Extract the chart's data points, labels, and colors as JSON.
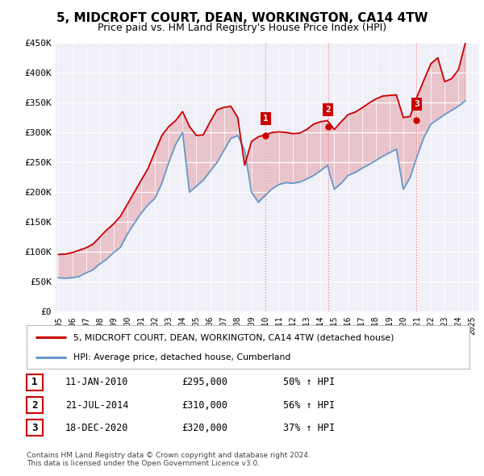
{
  "title": "5, MIDCROFT COURT, DEAN, WORKINGTON, CA14 4TW",
  "subtitle": "Price paid vs. HM Land Registry's House Price Index (HPI)",
  "ylim": [
    0,
    450000
  ],
  "yticks": [
    0,
    50000,
    100000,
    150000,
    200000,
    250000,
    300000,
    350000,
    400000,
    450000
  ],
  "ytick_labels": [
    "£0",
    "£50K",
    "£100K",
    "£150K",
    "£200K",
    "£250K",
    "£300K",
    "£350K",
    "£400K",
    "£450K"
  ],
  "xtick_labels": [
    "1995",
    "1996",
    "1997",
    "1998",
    "1999",
    "2000",
    "2001",
    "2002",
    "2003",
    "2004",
    "2005",
    "2006",
    "2007",
    "2008",
    "2009",
    "2010",
    "2011",
    "2012",
    "2013",
    "2014",
    "2015",
    "2016",
    "2017",
    "2018",
    "2019",
    "2020",
    "2021",
    "2022",
    "2023",
    "2024",
    "2025"
  ],
  "hpi_color": "#6699cc",
  "price_color": "#cc0000",
  "vline_color": "#ff6666",
  "bg_color": "#ffffff",
  "plot_bg": "#f0f0f8",
  "legend_label_price": "5, MIDCROFT COURT, DEAN, WORKINGTON, CA14 4TW (detached house)",
  "legend_label_hpi": "HPI: Average price, detached house, Cumberland",
  "sales": [
    {
      "date": 2010.03,
      "price": 295000,
      "label": "1"
    },
    {
      "date": 2014.55,
      "price": 310000,
      "label": "2"
    },
    {
      "date": 2020.96,
      "price": 320000,
      "label": "3"
    }
  ],
  "table_rows": [
    {
      "num": "1",
      "date": "11-JAN-2010",
      "price": "£295,000",
      "pct": "50% ↑ HPI"
    },
    {
      "num": "2",
      "date": "21-JUL-2014",
      "price": "£310,000",
      "pct": "56% ↑ HPI"
    },
    {
      "num": "3",
      "date": "18-DEC-2020",
      "price": "£320,000",
      "pct": "37% ↑ HPI"
    }
  ],
  "footnote": "Contains HM Land Registry data © Crown copyright and database right 2024.\nThis data is licensed under the Open Government Licence v3.0.",
  "hpi_x": [
    1995,
    1995.5,
    1996,
    1996.5,
    1997,
    1997.5,
    1998,
    1998.5,
    1999,
    1999.5,
    2000,
    2000.5,
    2001,
    2001.5,
    2002,
    2002.5,
    2003,
    2003.5,
    2004,
    2004.5,
    2005,
    2005.5,
    2006,
    2006.5,
    2007,
    2007.5,
    2008,
    2008.5,
    2009,
    2009.5,
    2010,
    2010.5,
    2011,
    2011.5,
    2012,
    2012.5,
    2013,
    2013.5,
    2014,
    2014.5,
    2015,
    2015.5,
    2016,
    2016.5,
    2017,
    2017.5,
    2018,
    2018.5,
    2019,
    2019.5,
    2020,
    2020.5,
    2021,
    2021.5,
    2022,
    2022.5,
    2023,
    2023.5,
    2024,
    2024.5
  ],
  "hpi_y": [
    57000,
    56000,
    57000,
    59000,
    65000,
    70000,
    80000,
    88000,
    99000,
    108000,
    130000,
    148000,
    165000,
    179000,
    190000,
    215000,
    250000,
    280000,
    300000,
    200000,
    210000,
    220000,
    235000,
    250000,
    270000,
    290000,
    295000,
    270000,
    200000,
    183000,
    195000,
    206000,
    213000,
    216000,
    215000,
    217000,
    222000,
    228000,
    236000,
    245000,
    205000,
    215000,
    228000,
    233000,
    240000,
    246000,
    253000,
    260000,
    266000,
    272000,
    205000,
    225000,
    260000,
    292000,
    314000,
    322000,
    330000,
    337000,
    344000,
    353000
  ],
  "price_x": [
    1995,
    1995.5,
    1996,
    1996.5,
    1997,
    1997.5,
    1998,
    1998.5,
    1999,
    1999.5,
    2000,
    2000.5,
    2001,
    2001.5,
    2002,
    2002.5,
    2003,
    2003.5,
    2004,
    2004.5,
    2005,
    2005.5,
    2006,
    2006.5,
    2007,
    2007.5,
    2008,
    2008.5,
    2009,
    2009.5,
    2010,
    2010.5,
    2011,
    2011.5,
    2012,
    2012.5,
    2013,
    2013.5,
    2014,
    2014.5,
    2015,
    2015.5,
    2016,
    2016.5,
    2017,
    2017.5,
    2018,
    2018.5,
    2019,
    2019.5,
    2020,
    2020.5,
    2021,
    2021.5,
    2022,
    2022.5,
    2023,
    2023.5,
    2024,
    2024.5
  ],
  "price_y": [
    96000,
    96500,
    99000,
    103000,
    107000,
    113000,
    125000,
    137000,
    147000,
    160000,
    180000,
    200000,
    220000,
    240000,
    268000,
    295000,
    310000,
    320000,
    335000,
    310000,
    295000,
    296000,
    318000,
    338000,
    342000,
    344000,
    325000,
    245000,
    285000,
    293000,
    296000,
    300000,
    301000,
    300000,
    298000,
    299000,
    305000,
    314000,
    318000,
    320000,
    305000,
    318000,
    330000,
    334000,
    341000,
    349000,
    356000,
    361000,
    362000,
    363000,
    325000,
    327000,
    360000,
    388000,
    415000,
    425000,
    385000,
    390000,
    405000,
    450000
  ]
}
